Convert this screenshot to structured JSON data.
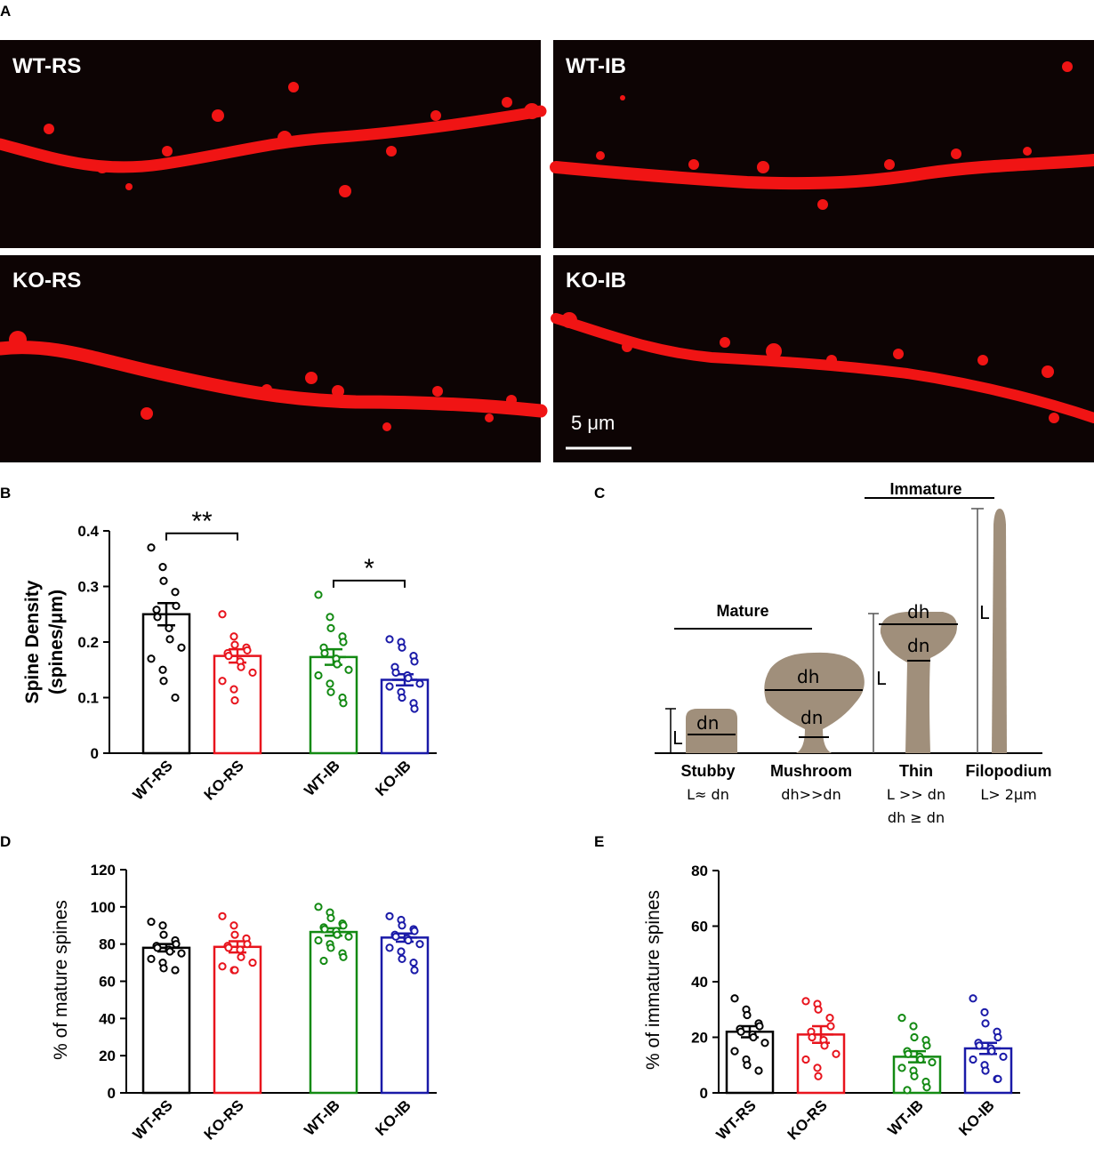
{
  "panels": {
    "a": "A",
    "b": "B",
    "c": "C",
    "d": "D",
    "e": "E"
  },
  "images": [
    {
      "label": "WT-RS"
    },
    {
      "label": "WT-IB"
    },
    {
      "label": "KO-RS"
    },
    {
      "label": "KO-IB"
    }
  ],
  "scale_bar": "5 μm",
  "colors": {
    "WT-RS": "#000000",
    "KO-RS": "#e8141d",
    "WT-IB": "#138a13",
    "KO-IB": "#1a1aa8",
    "spine": "#a08f7b",
    "micrograph_bg": "#0d0404",
    "dendrite": "#f01414"
  },
  "chart_data": [
    {
      "panel": "B",
      "type": "bar",
      "categories": [
        "WT-RS",
        "KO-RS",
        "WT-IB",
        "KO-IB"
      ],
      "values": [
        0.25,
        0.175,
        0.173,
        0.132
      ],
      "sem": [
        0.02,
        0.012,
        0.014,
        0.01
      ],
      "points": [
        [
          0.37,
          0.335,
          0.31,
          0.29,
          0.265,
          0.258,
          0.245,
          0.225,
          0.205,
          0.19,
          0.17,
          0.15,
          0.13,
          0.1
        ],
        [
          0.25,
          0.21,
          0.195,
          0.19,
          0.185,
          0.18,
          0.175,
          0.165,
          0.155,
          0.145,
          0.13,
          0.115,
          0.095
        ],
        [
          0.285,
          0.245,
          0.225,
          0.21,
          0.2,
          0.19,
          0.18,
          0.17,
          0.16,
          0.15,
          0.14,
          0.125,
          0.11,
          0.1,
          0.09
        ],
        [
          0.205,
          0.2,
          0.19,
          0.175,
          0.165,
          0.155,
          0.145,
          0.14,
          0.135,
          0.125,
          0.12,
          0.11,
          0.1,
          0.09,
          0.08
        ]
      ],
      "ylabel_line1": "Spine Density",
      "ylabel_line2": "(spines/μm)",
      "ylim": [
        0,
        0.4
      ],
      "yticks": [
        "0",
        "0.1",
        "0.2",
        "0.3",
        "0.4"
      ],
      "sig": [
        {
          "from": 0,
          "to": 1,
          "label": "**"
        },
        {
          "from": 2,
          "to": 3,
          "label": "*"
        }
      ]
    },
    {
      "panel": "D",
      "type": "bar",
      "categories": [
        "WT-RS",
        "KO-RS",
        "WT-IB",
        "KO-IB"
      ],
      "values": [
        78,
        78.5,
        86.5,
        83.5
      ],
      "sem": [
        2.0,
        3.0,
        2.0,
        2.2
      ],
      "points": [
        [
          92,
          90,
          85,
          82,
          80,
          79,
          78,
          77,
          76,
          75,
          72,
          70,
          67,
          66
        ],
        [
          95,
          90,
          85,
          83,
          80,
          79,
          78,
          77,
          73,
          70,
          68,
          66,
          66
        ],
        [
          100,
          97,
          94,
          91,
          90,
          89,
          88,
          87,
          85,
          84,
          82,
          80,
          78,
          75,
          73,
          71
        ],
        [
          95,
          93,
          90,
          88,
          87,
          85,
          84,
          83,
          82,
          80,
          78,
          76,
          72,
          70,
          66
        ]
      ],
      "ylabel": "% of mature spines",
      "ylim": [
        0,
        120
      ],
      "yticks": [
        "0",
        "20",
        "40",
        "60",
        "80",
        "100",
        "120"
      ]
    },
    {
      "panel": "E",
      "type": "bar",
      "categories": [
        "WT-RS",
        "KO-RS",
        "WT-IB",
        "KO-IB"
      ],
      "values": [
        22,
        21,
        13,
        16
      ],
      "sem": [
        2.0,
        3.0,
        2.0,
        2.0
      ],
      "points": [
        [
          34,
          30,
          28,
          25,
          24,
          23,
          22,
          21,
          20,
          18,
          15,
          12,
          10,
          8
        ],
        [
          33,
          32,
          30,
          27,
          24,
          22,
          20,
          19,
          17,
          14,
          12,
          9,
          6
        ],
        [
          27,
          24,
          20,
          19,
          17,
          15,
          14,
          13,
          12,
          11,
          9,
          8,
          6,
          4,
          2,
          1
        ],
        [
          34,
          29,
          25,
          22,
          20,
          18,
          17,
          16,
          15,
          13,
          12,
          10,
          8,
          5,
          5
        ]
      ],
      "ylabel": "% of immature spines",
      "ylim": [
        0,
        80
      ],
      "yticks": [
        "0",
        "20",
        "40",
        "60",
        "80"
      ]
    }
  ],
  "diagram": {
    "mature": "Mature",
    "immature": "Immature",
    "types": [
      {
        "name": "Stubby",
        "rule1": "L≈ dn",
        "rule2": ""
      },
      {
        "name": "Mushroom",
        "rule1": "dh>>dn",
        "rule2": ""
      },
      {
        "name": "Thin",
        "rule1": "L >> dn",
        "rule2": "dh ≥ dn"
      },
      {
        "name": "Filopodium",
        "rule1": "L> 2μm",
        "rule2": ""
      }
    ],
    "labels": {
      "L": "L",
      "dn": "dn",
      "dh": "dh"
    }
  }
}
